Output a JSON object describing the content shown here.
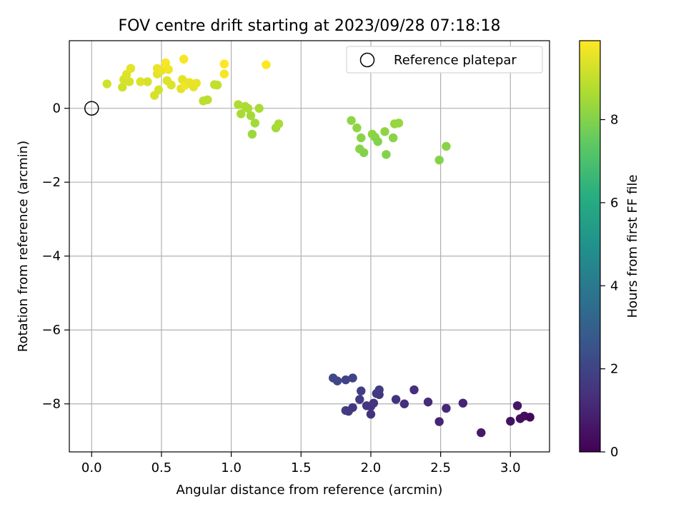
{
  "chart_data": {
    "type": "scatter",
    "title": "FOV centre drift starting at 2023/09/28 07:18:18",
    "xlabel": "Angular distance from reference (arcmin)",
    "ylabel": "Rotation from reference (arcmin)",
    "xlim": [
      -0.16,
      3.28
    ],
    "ylim": [
      -9.3,
      1.83
    ],
    "xticks": [
      0.0,
      0.5,
      1.0,
      1.5,
      2.0,
      2.5,
      3.0
    ],
    "xtick_labels": [
      "0.0",
      "0.5",
      "1.0",
      "1.5",
      "2.0",
      "2.5",
      "3.0"
    ],
    "yticks": [
      0,
      -2,
      -4,
      -6,
      -8
    ],
    "ytick_labels": [
      "0",
      "−2",
      "−4",
      "−6",
      "−8"
    ],
    "grid": true,
    "legend": {
      "position": "top-right",
      "entries": [
        "Reference platepar"
      ]
    },
    "reference_point": {
      "x": 0.0,
      "y": 0.0
    },
    "colorbar": {
      "label": "Hours from first FF file",
      "colormap": "viridis",
      "range": [
        0,
        9.9
      ],
      "ticks": [
        0,
        2,
        4,
        6,
        8
      ],
      "tick_labels": [
        "0",
        "2",
        "4",
        "6",
        "8"
      ]
    },
    "points": [
      {
        "x": 1.73,
        "y": -7.3,
        "c": 2.2
      },
      {
        "x": 1.76,
        "y": -7.38,
        "c": 2.1
      },
      {
        "x": 1.82,
        "y": -7.35,
        "c": 2.0
      },
      {
        "x": 1.87,
        "y": -7.3,
        "c": 2.0
      },
      {
        "x": 1.93,
        "y": -7.65,
        "c": 1.8
      },
      {
        "x": 1.92,
        "y": -7.88,
        "c": 1.7
      },
      {
        "x": 1.82,
        "y": -8.18,
        "c": 1.8
      },
      {
        "x": 1.84,
        "y": -8.2,
        "c": 1.7
      },
      {
        "x": 1.87,
        "y": -8.1,
        "c": 1.6
      },
      {
        "x": 1.97,
        "y": -8.05,
        "c": 1.6
      },
      {
        "x": 2.0,
        "y": -8.07,
        "c": 1.5
      },
      {
        "x": 2.0,
        "y": -8.28,
        "c": 1.4
      },
      {
        "x": 2.02,
        "y": -7.98,
        "c": 1.5
      },
      {
        "x": 2.04,
        "y": -7.72,
        "c": 1.7
      },
      {
        "x": 2.06,
        "y": -7.62,
        "c": 1.8
      },
      {
        "x": 2.06,
        "y": -7.75,
        "c": 1.6
      },
      {
        "x": 2.18,
        "y": -7.88,
        "c": 1.4
      },
      {
        "x": 2.24,
        "y": -8.0,
        "c": 1.3
      },
      {
        "x": 2.31,
        "y": -7.62,
        "c": 1.3
      },
      {
        "x": 2.41,
        "y": -7.95,
        "c": 1.2
      },
      {
        "x": 2.49,
        "y": -8.48,
        "c": 1.0
      },
      {
        "x": 2.54,
        "y": -8.12,
        "c": 1.1
      },
      {
        "x": 2.66,
        "y": -7.98,
        "c": 1.0
      },
      {
        "x": 2.79,
        "y": -8.78,
        "c": 0.7
      },
      {
        "x": 3.0,
        "y": -8.47,
        "c": 0.5
      },
      {
        "x": 3.05,
        "y": -8.05,
        "c": 0.6
      },
      {
        "x": 3.07,
        "y": -8.4,
        "c": 0.4
      },
      {
        "x": 3.1,
        "y": -8.33,
        "c": 0.3
      },
      {
        "x": 3.14,
        "y": -8.36,
        "c": 0.2
      },
      {
        "x": 1.86,
        "y": -0.33,
        "c": 8.2
      },
      {
        "x": 1.9,
        "y": -0.53,
        "c": 8.2
      },
      {
        "x": 1.93,
        "y": -0.8,
        "c": 8.1
      },
      {
        "x": 1.92,
        "y": -1.1,
        "c": 8.1
      },
      {
        "x": 1.95,
        "y": -1.2,
        "c": 8.0
      },
      {
        "x": 2.01,
        "y": -0.7,
        "c": 8.2
      },
      {
        "x": 2.03,
        "y": -0.78,
        "c": 8.1
      },
      {
        "x": 2.05,
        "y": -0.9,
        "c": 8.0
      },
      {
        "x": 2.1,
        "y": -0.63,
        "c": 8.2
      },
      {
        "x": 2.11,
        "y": -1.25,
        "c": 8.0
      },
      {
        "x": 2.16,
        "y": -0.8,
        "c": 8.1
      },
      {
        "x": 2.17,
        "y": -0.42,
        "c": 8.3
      },
      {
        "x": 2.2,
        "y": -0.4,
        "c": 8.3
      },
      {
        "x": 2.49,
        "y": -1.4,
        "c": 8.0
      },
      {
        "x": 2.54,
        "y": -1.03,
        "c": 8.1
      },
      {
        "x": 1.05,
        "y": 0.1,
        "c": 8.7
      },
      {
        "x": 1.07,
        "y": -0.15,
        "c": 8.6
      },
      {
        "x": 1.1,
        "y": 0.05,
        "c": 8.7
      },
      {
        "x": 1.12,
        "y": 0.0,
        "c": 8.6
      },
      {
        "x": 1.14,
        "y": -0.2,
        "c": 8.5
      },
      {
        "x": 1.15,
        "y": -0.7,
        "c": 8.4
      },
      {
        "x": 1.17,
        "y": -0.4,
        "c": 8.5
      },
      {
        "x": 1.2,
        "y": 0.0,
        "c": 8.6
      },
      {
        "x": 1.32,
        "y": -0.53,
        "c": 8.5
      },
      {
        "x": 1.34,
        "y": -0.42,
        "c": 8.6
      },
      {
        "x": 0.8,
        "y": 0.2,
        "c": 8.9
      },
      {
        "x": 0.83,
        "y": 0.23,
        "c": 8.9
      },
      {
        "x": 0.88,
        "y": 0.64,
        "c": 9.0
      },
      {
        "x": 0.9,
        "y": 0.63,
        "c": 9.0
      },
      {
        "x": 0.11,
        "y": 0.66,
        "c": 9.2
      },
      {
        "x": 0.22,
        "y": 0.57,
        "c": 9.2
      },
      {
        "x": 0.23,
        "y": 0.78,
        "c": 9.3
      },
      {
        "x": 0.25,
        "y": 0.92,
        "c": 9.4
      },
      {
        "x": 0.27,
        "y": 0.72,
        "c": 9.3
      },
      {
        "x": 0.28,
        "y": 1.08,
        "c": 9.5
      },
      {
        "x": 0.35,
        "y": 0.72,
        "c": 9.4
      },
      {
        "x": 0.4,
        "y": 0.72,
        "c": 9.3
      },
      {
        "x": 0.45,
        "y": 0.35,
        "c": 9.3
      },
      {
        "x": 0.47,
        "y": 0.93,
        "c": 9.5
      },
      {
        "x": 0.47,
        "y": 1.08,
        "c": 9.6
      },
      {
        "x": 0.48,
        "y": 0.5,
        "c": 9.3
      },
      {
        "x": 0.5,
        "y": 1.02,
        "c": 9.6
      },
      {
        "x": 0.53,
        "y": 1.23,
        "c": 9.8
      },
      {
        "x": 0.54,
        "y": 0.75,
        "c": 9.4
      },
      {
        "x": 0.55,
        "y": 1.05,
        "c": 9.7
      },
      {
        "x": 0.57,
        "y": 0.63,
        "c": 9.4
      },
      {
        "x": 0.64,
        "y": 0.53,
        "c": 9.5
      },
      {
        "x": 0.65,
        "y": 0.78,
        "c": 9.5
      },
      {
        "x": 0.66,
        "y": 1.33,
        "c": 9.8
      },
      {
        "x": 0.67,
        "y": 0.62,
        "c": 9.7
      },
      {
        "x": 0.7,
        "y": 0.7,
        "c": 9.6
      },
      {
        "x": 0.73,
        "y": 0.58,
        "c": 9.5
      },
      {
        "x": 0.75,
        "y": 0.68,
        "c": 9.6
      },
      {
        "x": 0.95,
        "y": 0.93,
        "c": 9.8
      },
      {
        "x": 0.95,
        "y": 1.2,
        "c": 9.9
      },
      {
        "x": 1.25,
        "y": 1.18,
        "c": 9.9
      }
    ]
  }
}
